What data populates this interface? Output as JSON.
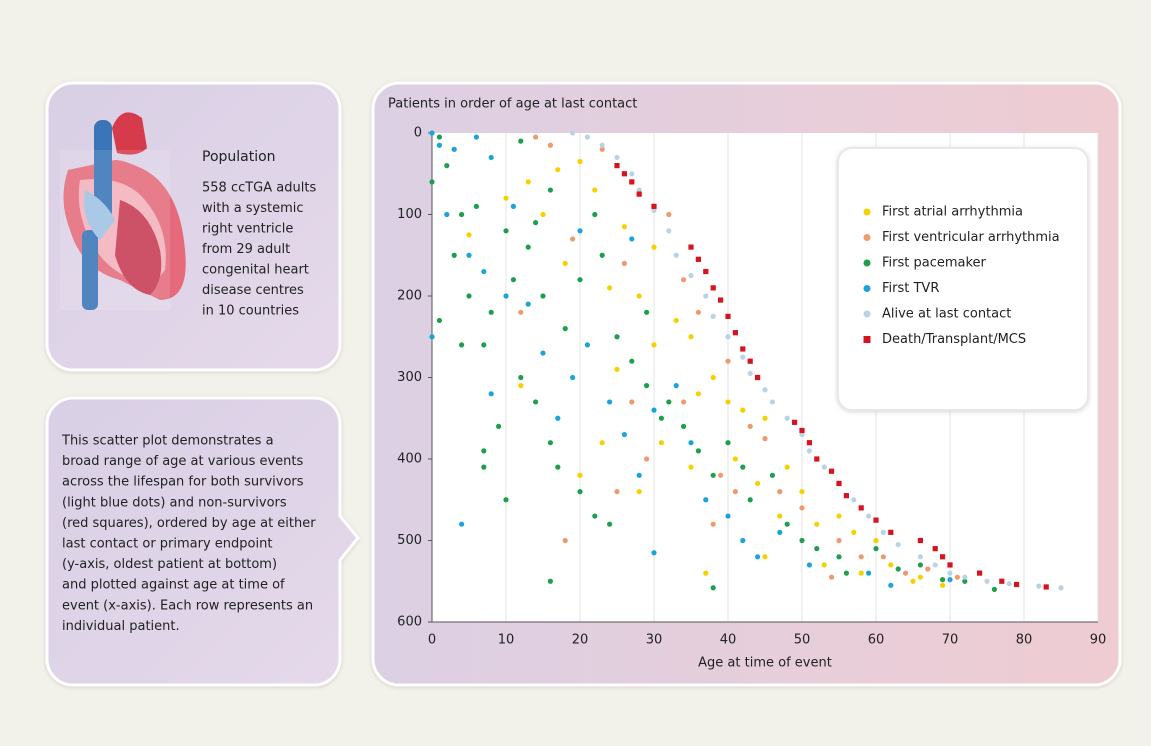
{
  "population": {
    "title": "Population",
    "lines": [
      "558 ccTGA adults",
      "with a systemic",
      "right ventricle",
      "from 29 adult",
      "congenital heart",
      "disease centres",
      "in 10 countries"
    ]
  },
  "description": {
    "lines": [
      "This scatter plot demonstrates a",
      "broad range of age at various events",
      "across the lifespan for both survivors",
      "(light blue dots) and non-survivors",
      "(red squares), ordered by age at either",
      "last contact or primary endpoint",
      "(y-axis, oldest patient at bottom)",
      "and plotted against age at time of",
      "event (x-axis). Each row represents an",
      "individual patient."
    ]
  },
  "chart_data": {
    "type": "scatter",
    "title": "Patients in order of age at last contact",
    "x_label": "Age at time of event",
    "xlim": [
      0,
      90
    ],
    "xticks": [
      0,
      10,
      20,
      30,
      40,
      50,
      60,
      70,
      80,
      90
    ],
    "ylim": [
      0,
      600
    ],
    "yticks": [
      0,
      100,
      200,
      300,
      400,
      500,
      600
    ],
    "y_inverted": true,
    "grid": "x",
    "legend": "upper right",
    "series": [
      {
        "name": "First atrial arrhythmia",
        "color": "#f7d000",
        "marker": "circle",
        "x": [
          10,
          13,
          17,
          20,
          22,
          15,
          26,
          18,
          24,
          28,
          30,
          33,
          30,
          35,
          25,
          12,
          36,
          38,
          31,
          40,
          42,
          45,
          35,
          41,
          44,
          48,
          50,
          47,
          52,
          55,
          57,
          60,
          45,
          53,
          62,
          58,
          65,
          66,
          69,
          3,
          5,
          23,
          20,
          28,
          37
        ],
        "values": [
          80,
          60,
          45,
          35,
          70,
          100,
          115,
          160,
          190,
          200,
          140,
          230,
          260,
          250,
          290,
          310,
          320,
          300,
          380,
          330,
          340,
          350,
          410,
          400,
          430,
          410,
          440,
          470,
          480,
          470,
          490,
          500,
          520,
          530,
          530,
          540,
          550,
          545,
          555,
          20,
          125,
          380,
          420,
          440,
          540
        ]
      },
      {
        "name": "First ventricular arrhythmia",
        "color": "#ee9a6e",
        "marker": "circle",
        "x": [
          14,
          16,
          23,
          27,
          19,
          32,
          26,
          34,
          12,
          36,
          40,
          27,
          34,
          43,
          45,
          39,
          29,
          41,
          47,
          50,
          38,
          55,
          58,
          61,
          64,
          67,
          71,
          54,
          25,
          18
        ],
        "values": [
          5,
          15,
          20,
          60,
          130,
          100,
          160,
          180,
          220,
          220,
          280,
          330,
          330,
          360,
          375,
          420,
          400,
          440,
          440,
          460,
          480,
          500,
          520,
          520,
          540,
          535,
          545,
          545,
          440,
          500
        ]
      },
      {
        "name": "First pacemaker",
        "color": "#1f9e4d",
        "marker": "circle",
        "x": [
          1,
          0,
          2,
          4,
          6,
          3,
          5,
          1,
          4,
          7,
          8,
          10,
          11,
          12,
          14,
          16,
          13,
          15,
          18,
          20,
          23,
          22,
          7,
          7,
          9,
          10,
          12,
          14,
          16,
          17,
          20,
          22,
          24,
          16,
          29,
          32,
          31,
          34,
          36,
          38,
          40,
          42,
          43,
          46,
          48,
          50,
          52,
          55,
          56,
          60,
          63,
          66,
          69,
          72,
          76,
          38,
          25,
          29,
          27
        ],
        "values": [
          5,
          60,
          40,
          100,
          90,
          150,
          200,
          230,
          260,
          260,
          220,
          120,
          180,
          10,
          110,
          70,
          140,
          200,
          240,
          180,
          150,
          100,
          390,
          410,
          360,
          450,
          300,
          330,
          380,
          410,
          440,
          470,
          480,
          550,
          310,
          330,
          350,
          360,
          390,
          420,
          380,
          410,
          450,
          420,
          480,
          500,
          510,
          520,
          540,
          510,
          535,
          530,
          548,
          550,
          560,
          558,
          250,
          220,
          280
        ]
      },
      {
        "name": "First TVR",
        "color": "#1ca3d9",
        "marker": "circle",
        "x": [
          0,
          1,
          3,
          6,
          8,
          2,
          5,
          7,
          0,
          10,
          11,
          13,
          15,
          8,
          4,
          17,
          19,
          21,
          24,
          26,
          28,
          30,
          33,
          35,
          37,
          40,
          42,
          44,
          30,
          47,
          51,
          59,
          62,
          70,
          20,
          27
        ],
        "values": [
          0,
          15,
          20,
          5,
          30,
          100,
          150,
          170,
          250,
          200,
          90,
          210,
          270,
          320,
          480,
          350,
          300,
          260,
          330,
          370,
          420,
          340,
          310,
          380,
          450,
          470,
          500,
          520,
          515,
          490,
          530,
          540,
          555,
          548,
          120,
          130
        ]
      },
      {
        "name": "Alive at last contact",
        "color": "#b9d3e6",
        "marker": "circle",
        "x": [
          19,
          21,
          23,
          25,
          27,
          28,
          30,
          32,
          33,
          35,
          37,
          38,
          40,
          42,
          43,
          45,
          46,
          48,
          50,
          51,
          53,
          55,
          57,
          59,
          61,
          63,
          66,
          68,
          70,
          72,
          75,
          78,
          82,
          85
        ],
        "values": [
          0,
          5,
          15,
          30,
          50,
          70,
          95,
          120,
          150,
          175,
          200,
          225,
          250,
          275,
          295,
          315,
          330,
          350,
          370,
          390,
          410,
          430,
          450,
          470,
          490,
          505,
          520,
          530,
          540,
          545,
          550,
          553,
          556,
          558
        ]
      },
      {
        "name": "Death/Transplant/MCS",
        "color": "#d7141e",
        "marker": "square",
        "x": [
          25,
          26,
          27,
          28,
          30,
          35,
          36,
          37,
          38,
          39,
          40,
          41,
          42,
          43,
          44,
          49,
          50,
          51,
          52,
          54,
          55,
          56,
          58,
          60,
          62,
          66,
          68,
          69,
          70,
          74,
          77,
          79,
          83
        ],
        "values": [
          40,
          50,
          60,
          75,
          90,
          140,
          155,
          170,
          190,
          205,
          225,
          245,
          265,
          280,
          300,
          355,
          365,
          380,
          400,
          415,
          430,
          445,
          460,
          475,
          490,
          500,
          510,
          520,
          530,
          540,
          550,
          554,
          557
        ]
      }
    ]
  }
}
